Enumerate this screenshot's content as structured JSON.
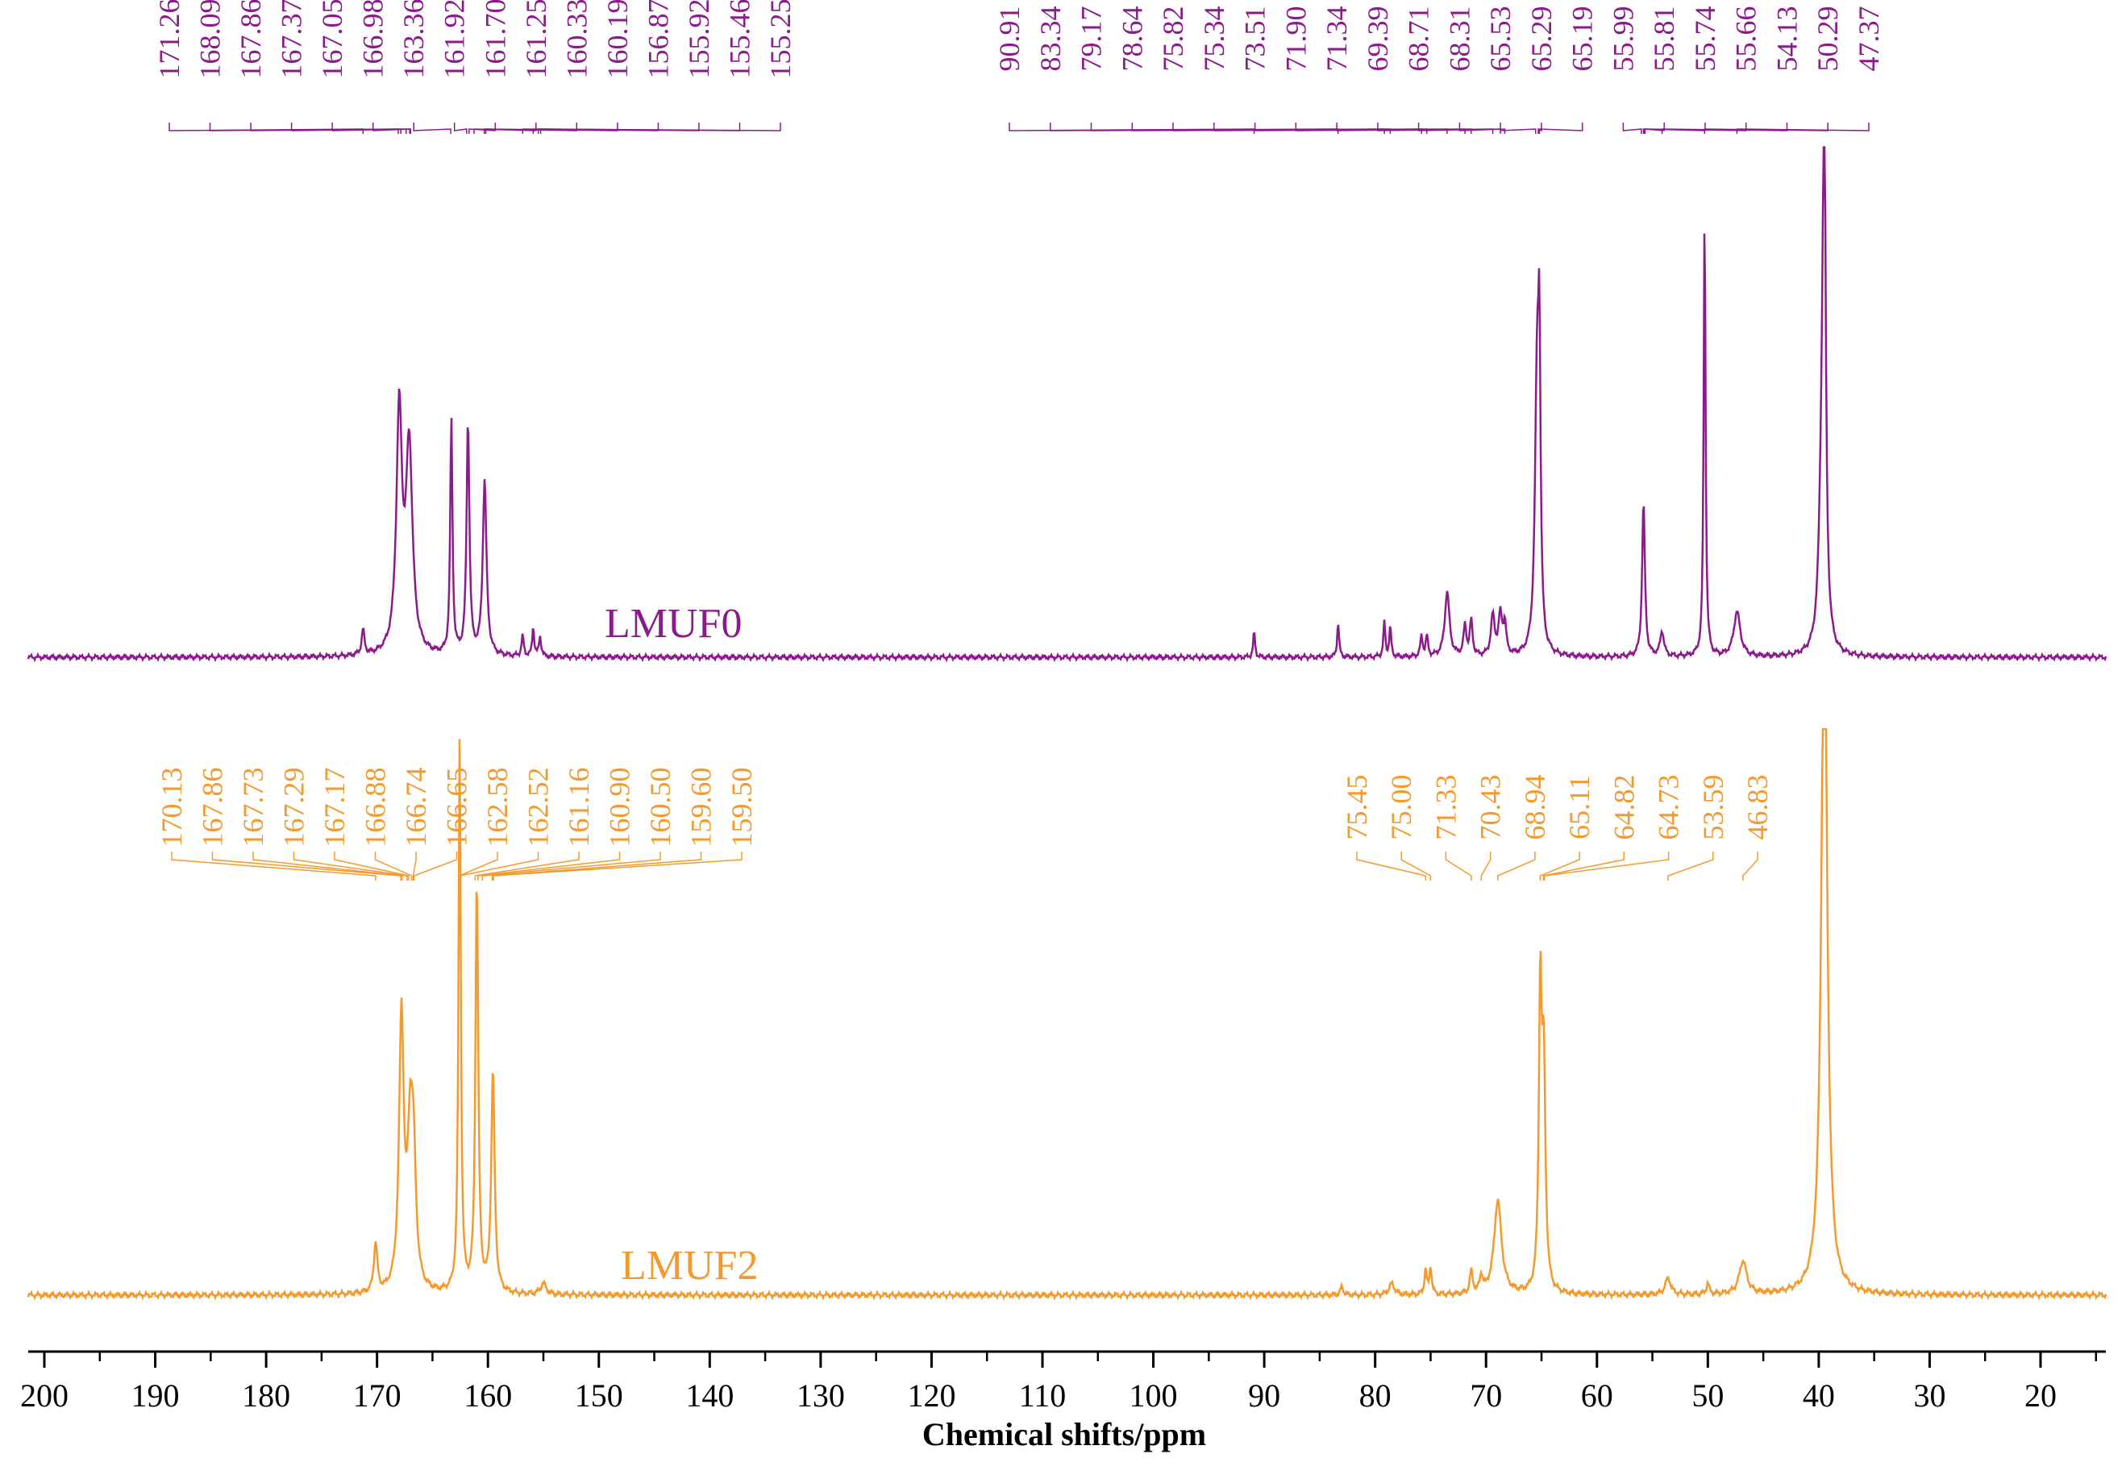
{
  "chart_data": {
    "type": "line",
    "title": "",
    "xlabel": "Chemical shifts/ppm",
    "ylabel": "",
    "xlim": [
      204,
      15
    ],
    "x_direction": "reversed",
    "grid": false,
    "x_ticks": [
      200,
      190,
      180,
      170,
      160,
      150,
      140,
      130,
      120,
      110,
      100,
      90,
      80,
      70,
      60,
      50,
      40,
      30,
      20
    ],
    "series": [
      {
        "name": "LMUF0",
        "color": "#8B1A8B",
        "peak_labels": [
          "171.26",
          "168.09",
          "167.86",
          "167.37",
          "167.05",
          "166.98",
          "163.36",
          "161.92",
          "161.70",
          "161.25",
          "160.33",
          "160.19",
          "156.87",
          "155.92",
          "155.46",
          "155.25",
          "90.91",
          "83.34",
          "79.17",
          "78.64",
          "75.82",
          "75.34",
          "73.51",
          "71.90",
          "71.34",
          "69.39",
          "68.71",
          "68.31",
          "65.53",
          "65.29",
          "65.19",
          "55.99",
          "55.81",
          "55.74",
          "55.66",
          "54.13",
          "50.29",
          "47.37"
        ],
        "peaks": [
          {
            "x": 171.26,
            "h": 0.05,
            "w": 0.15
          },
          {
            "x": 168.0,
            "h": 0.48,
            "w": 0.3
          },
          {
            "x": 167.1,
            "h": 0.41,
            "w": 0.35
          },
          {
            "x": 163.3,
            "h": 0.47,
            "w": 0.12
          },
          {
            "x": 161.8,
            "h": 0.47,
            "w": 0.15
          },
          {
            "x": 160.3,
            "h": 0.35,
            "w": 0.2
          },
          {
            "x": 156.87,
            "h": 0.04,
            "w": 0.12
          },
          {
            "x": 155.92,
            "h": 0.06,
            "w": 0.1
          },
          {
            "x": 155.3,
            "h": 0.04,
            "w": 0.12
          },
          {
            "x": 90.91,
            "h": 0.05,
            "w": 0.1
          },
          {
            "x": 83.34,
            "h": 0.07,
            "w": 0.1
          },
          {
            "x": 79.17,
            "h": 0.07,
            "w": 0.1
          },
          {
            "x": 78.64,
            "h": 0.06,
            "w": 0.1
          },
          {
            "x": 75.82,
            "h": 0.04,
            "w": 0.12
          },
          {
            "x": 75.34,
            "h": 0.04,
            "w": 0.12
          },
          {
            "x": 73.51,
            "h": 0.13,
            "w": 0.25
          },
          {
            "x": 71.9,
            "h": 0.06,
            "w": 0.15
          },
          {
            "x": 71.34,
            "h": 0.07,
            "w": 0.15
          },
          {
            "x": 69.39,
            "h": 0.08,
            "w": 0.2
          },
          {
            "x": 68.71,
            "h": 0.08,
            "w": 0.2
          },
          {
            "x": 68.31,
            "h": 0.06,
            "w": 0.15
          },
          {
            "x": 65.4,
            "h": 0.55,
            "w": 0.22
          },
          {
            "x": 65.19,
            "h": 0.48,
            "w": 0.12
          },
          {
            "x": 55.8,
            "h": 0.31,
            "w": 0.15
          },
          {
            "x": 54.13,
            "h": 0.05,
            "w": 0.2
          },
          {
            "x": 50.29,
            "h": 0.9,
            "w": 0.1
          },
          {
            "x": 47.37,
            "h": 0.09,
            "w": 0.35
          },
          {
            "x": 39.5,
            "h": 0.97,
            "w": 0.15
          },
          {
            "x": 39.7,
            "h": 0.35,
            "w": 0.3
          }
        ]
      },
      {
        "name": "LMUF2",
        "color": "#F39A2E",
        "peak_labels": [
          "170.13",
          "167.86",
          "167.73",
          "167.29",
          "167.17",
          "166.88",
          "166.74",
          "166.65",
          "162.58",
          "162.52",
          "161.16",
          "160.90",
          "160.50",
          "159.60",
          "159.50",
          "75.45",
          "75.00",
          "71.33",
          "70.43",
          "68.94",
          "65.11",
          "64.82",
          "64.73",
          "53.59",
          "46.83"
        ],
        "peaks": [
          {
            "x": 170.13,
            "h": 0.09,
            "w": 0.18
          },
          {
            "x": 167.8,
            "h": 0.49,
            "w": 0.25
          },
          {
            "x": 167.0,
            "h": 0.27,
            "w": 0.3
          },
          {
            "x": 166.7,
            "h": 0.18,
            "w": 0.25
          },
          {
            "x": 162.55,
            "h": 1.0,
            "w": 0.12
          },
          {
            "x": 161.0,
            "h": 0.75,
            "w": 0.15
          },
          {
            "x": 159.55,
            "h": 0.4,
            "w": 0.18
          },
          {
            "x": 155.0,
            "h": 0.02,
            "w": 0.3
          },
          {
            "x": 83.0,
            "h": 0.015,
            "w": 0.15
          },
          {
            "x": 78.5,
            "h": 0.02,
            "w": 0.3
          },
          {
            "x": 75.45,
            "h": 0.045,
            "w": 0.12
          },
          {
            "x": 75.0,
            "h": 0.05,
            "w": 0.12
          },
          {
            "x": 71.33,
            "h": 0.04,
            "w": 0.15
          },
          {
            "x": 70.43,
            "h": 0.03,
            "w": 0.15
          },
          {
            "x": 68.94,
            "h": 0.17,
            "w": 0.4
          },
          {
            "x": 65.11,
            "h": 0.53,
            "w": 0.15
          },
          {
            "x": 64.8,
            "h": 0.4,
            "w": 0.18
          },
          {
            "x": 53.59,
            "h": 0.03,
            "w": 0.3
          },
          {
            "x": 50.0,
            "h": 0.02,
            "w": 0.15
          },
          {
            "x": 46.83,
            "h": 0.06,
            "w": 0.4
          },
          {
            "x": 39.5,
            "h": 1.0,
            "w": 0.25
          },
          {
            "x": 39.5,
            "h": 0.4,
            "w": 0.4
          }
        ]
      }
    ]
  }
}
